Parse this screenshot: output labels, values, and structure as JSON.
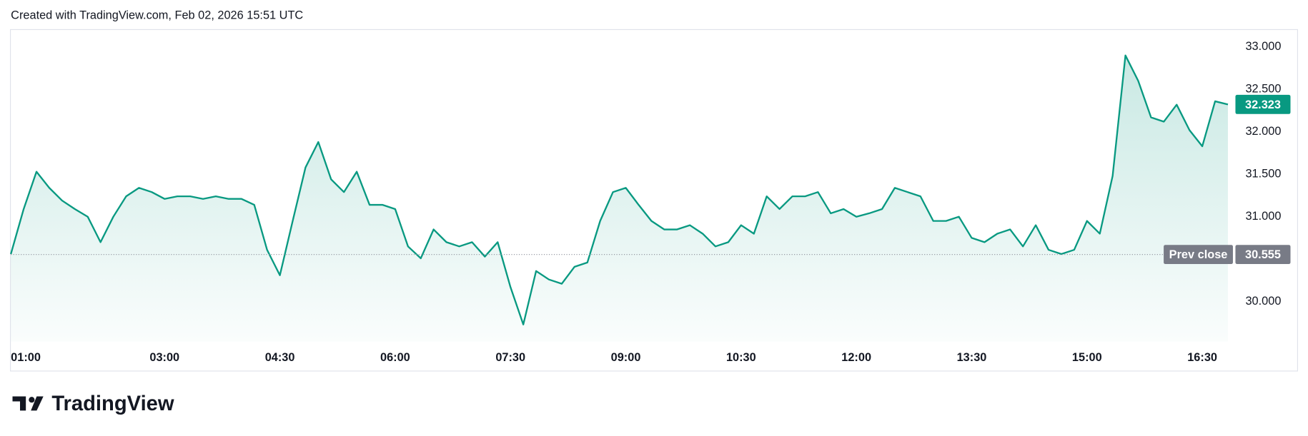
{
  "chart_data": {
    "type": "area",
    "title": "Created with TradingView.com, Feb 02, 2026 15:51 UTC",
    "brand": "TradingView",
    "prev_close_label": "Prev close",
    "prev_close": 30.555,
    "series": [
      {
        "name": null,
        "color": "#089981",
        "x": [
          "01:00",
          "01:10",
          "01:20",
          "01:30",
          "01:40",
          "01:50",
          "02:00",
          "02:10",
          "02:20",
          "02:30",
          "02:40",
          "02:50",
          "03:00",
          "03:10",
          "03:20",
          "03:30",
          "03:40",
          "03:50",
          "04:00",
          "04:10",
          "04:20",
          "04:30",
          "04:40",
          "04:50",
          "05:00",
          "05:10",
          "05:20",
          "05:30",
          "05:40",
          "05:50",
          "06:00",
          "06:10",
          "06:20",
          "06:30",
          "06:40",
          "06:50",
          "07:00",
          "07:10",
          "07:20",
          "07:30",
          "07:40",
          "07:50",
          "08:00",
          "08:10",
          "08:20",
          "08:30",
          "08:40",
          "08:50",
          "09:00",
          "09:10",
          "09:20",
          "09:30",
          "09:40",
          "09:50",
          "10:00",
          "10:10",
          "10:20",
          "10:30",
          "10:40",
          "10:50",
          "11:00",
          "11:10",
          "11:20",
          "11:30",
          "11:40",
          "11:50",
          "12:00",
          "12:10",
          "12:20",
          "12:30",
          "12:40",
          "12:50",
          "13:00",
          "13:10",
          "13:20",
          "13:30",
          "13:40",
          "13:50",
          "14:00",
          "14:10",
          "14:20",
          "14:30",
          "14:40",
          "14:50",
          "15:00",
          "15:10",
          "15:20",
          "15:30",
          "15:40",
          "15:50",
          "16:00",
          "16:10",
          "16:20",
          "16:30",
          "16:40",
          "16:50"
        ],
        "values": [
          30.56,
          31.09,
          31.53,
          31.34,
          31.19,
          31.09,
          31.0,
          30.7,
          31.0,
          31.24,
          31.34,
          31.29,
          31.21,
          31.24,
          31.24,
          31.21,
          31.24,
          31.21,
          31.21,
          31.14,
          30.61,
          30.31,
          30.95,
          31.58,
          31.88,
          31.44,
          31.29,
          31.53,
          31.14,
          31.14,
          31.09,
          30.65,
          30.51,
          30.85,
          30.7,
          30.65,
          30.7,
          30.53,
          30.7,
          30.17,
          29.73,
          30.36,
          30.26,
          30.21,
          30.41,
          30.46,
          30.95,
          31.29,
          31.34,
          31.14,
          30.95,
          30.85,
          30.85,
          30.9,
          30.8,
          30.65,
          30.7,
          30.9,
          30.8,
          31.24,
          31.09,
          31.24,
          31.24,
          31.29,
          31.04,
          31.09,
          31.0,
          31.04,
          31.09,
          31.34,
          31.29,
          31.24,
          30.95,
          30.95,
          31.0,
          30.75,
          30.7,
          30.8,
          30.85,
          30.65,
          30.9,
          30.61,
          30.56,
          30.61,
          30.95,
          30.8,
          31.48,
          32.9,
          32.6,
          32.17,
          32.12,
          32.32,
          32.02,
          31.83,
          32.36,
          32.323
        ]
      }
    ],
    "xlim": [
      "01:00",
      "16:50"
    ],
    "xticks": [
      "01:00",
      "03:00",
      "04:30",
      "06:00",
      "07:30",
      "09:00",
      "10:30",
      "12:00",
      "13:30",
      "15:00",
      "16:30"
    ],
    "ylim": [
      29.53,
      33.2
    ],
    "yticks": [
      {
        "value": 30,
        "label": "30.000"
      },
      {
        "value": 31,
        "label": "31.000"
      },
      {
        "value": 31.5,
        "label": "31.500"
      },
      {
        "value": 32,
        "label": "32.000"
      },
      {
        "value": 32.5,
        "label": "32.500"
      },
      {
        "value": 33,
        "label": "33.000"
      }
    ],
    "grid": false
  }
}
